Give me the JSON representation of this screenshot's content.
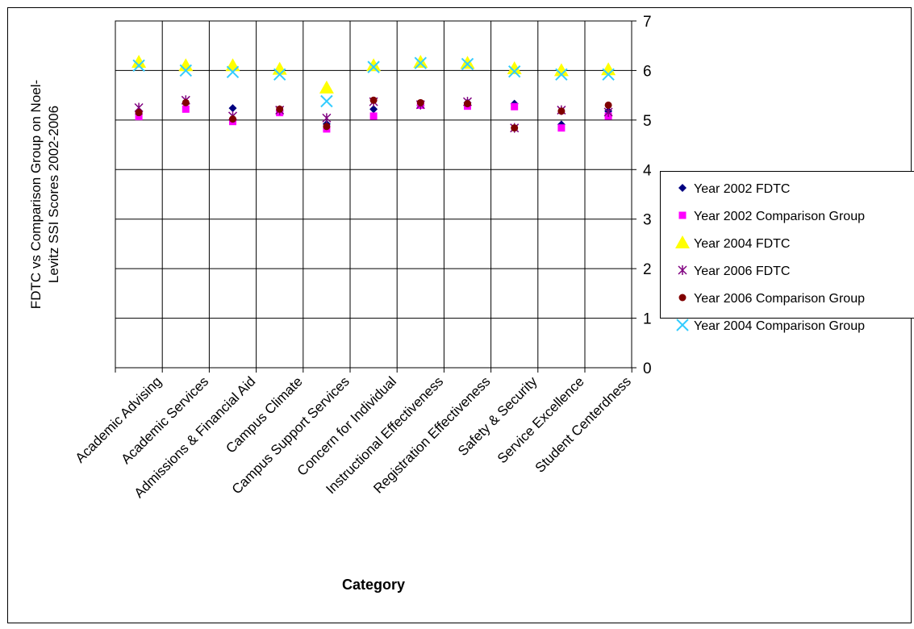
{
  "chart_data": {
    "type": "scatter",
    "title": "",
    "xlabel": "Category",
    "ylabel": "FDTC vs Comparison Group on Noel-Levitz SSI Scores 2002-2006",
    "ylabel_lines": [
      "FDTC vs Comparison Group on Noel-",
      "Levitz SSI Scores 2002-2006"
    ],
    "categories": [
      "Academic Advising",
      "Academic Services",
      "Admissions & Financial Aid",
      "Campus Climate",
      "Campus Support Services",
      "Concern for Individual",
      "Instructional Effectiveness",
      "Registration Effectiveness",
      "Safety & Security",
      "Service Excellence",
      "Student Centerdness"
    ],
    "ylim": [
      0,
      7
    ],
    "yticks": [
      "0",
      "1",
      "2",
      "3",
      "4",
      "5",
      "6",
      "7"
    ],
    "y_axis_side": "right",
    "grid": true,
    "legend_position": "right",
    "series": [
      {
        "name": "Year 2002 FDTC",
        "marker": "diamond",
        "color": "#000080",
        "values": [
          5.12,
          5.34,
          5.24,
          5.18,
          4.92,
          5.22,
          5.3,
          5.35,
          5.33,
          4.91,
          5.18
        ]
      },
      {
        "name": "Year 2002 Comparison Group",
        "marker": "square",
        "color": "#ff00ff",
        "values": [
          5.07,
          5.22,
          4.97,
          5.15,
          4.82,
          5.08,
          5.3,
          5.28,
          5.27,
          4.84,
          5.08
        ]
      },
      {
        "name": "Year 2004 FDTC",
        "marker": "triangle",
        "color": "#ffff00",
        "values": [
          6.17,
          6.1,
          6.1,
          6.03,
          5.65,
          6.1,
          6.17,
          6.15,
          6.04,
          6.0,
          6.02
        ]
      },
      {
        "name": "Year 2006 FDTC",
        "marker": "star",
        "color": "#800080",
        "values": [
          5.25,
          5.4,
          5.08,
          5.2,
          5.04,
          5.37,
          5.31,
          5.37,
          4.84,
          5.2,
          5.16
        ]
      },
      {
        "name": "Year 2006 Comparison Group",
        "marker": "circle",
        "color": "#800000",
        "values": [
          5.15,
          5.35,
          5.02,
          5.22,
          4.87,
          5.4,
          5.35,
          5.33,
          4.84,
          5.18,
          5.3
        ]
      },
      {
        "name": "Year 2004 Comparison Group",
        "marker": "x",
        "color": "#33ccff",
        "values": [
          6.1,
          6.0,
          5.97,
          5.92,
          5.38,
          6.07,
          6.15,
          6.13,
          5.98,
          5.92,
          5.92
        ]
      }
    ]
  }
}
